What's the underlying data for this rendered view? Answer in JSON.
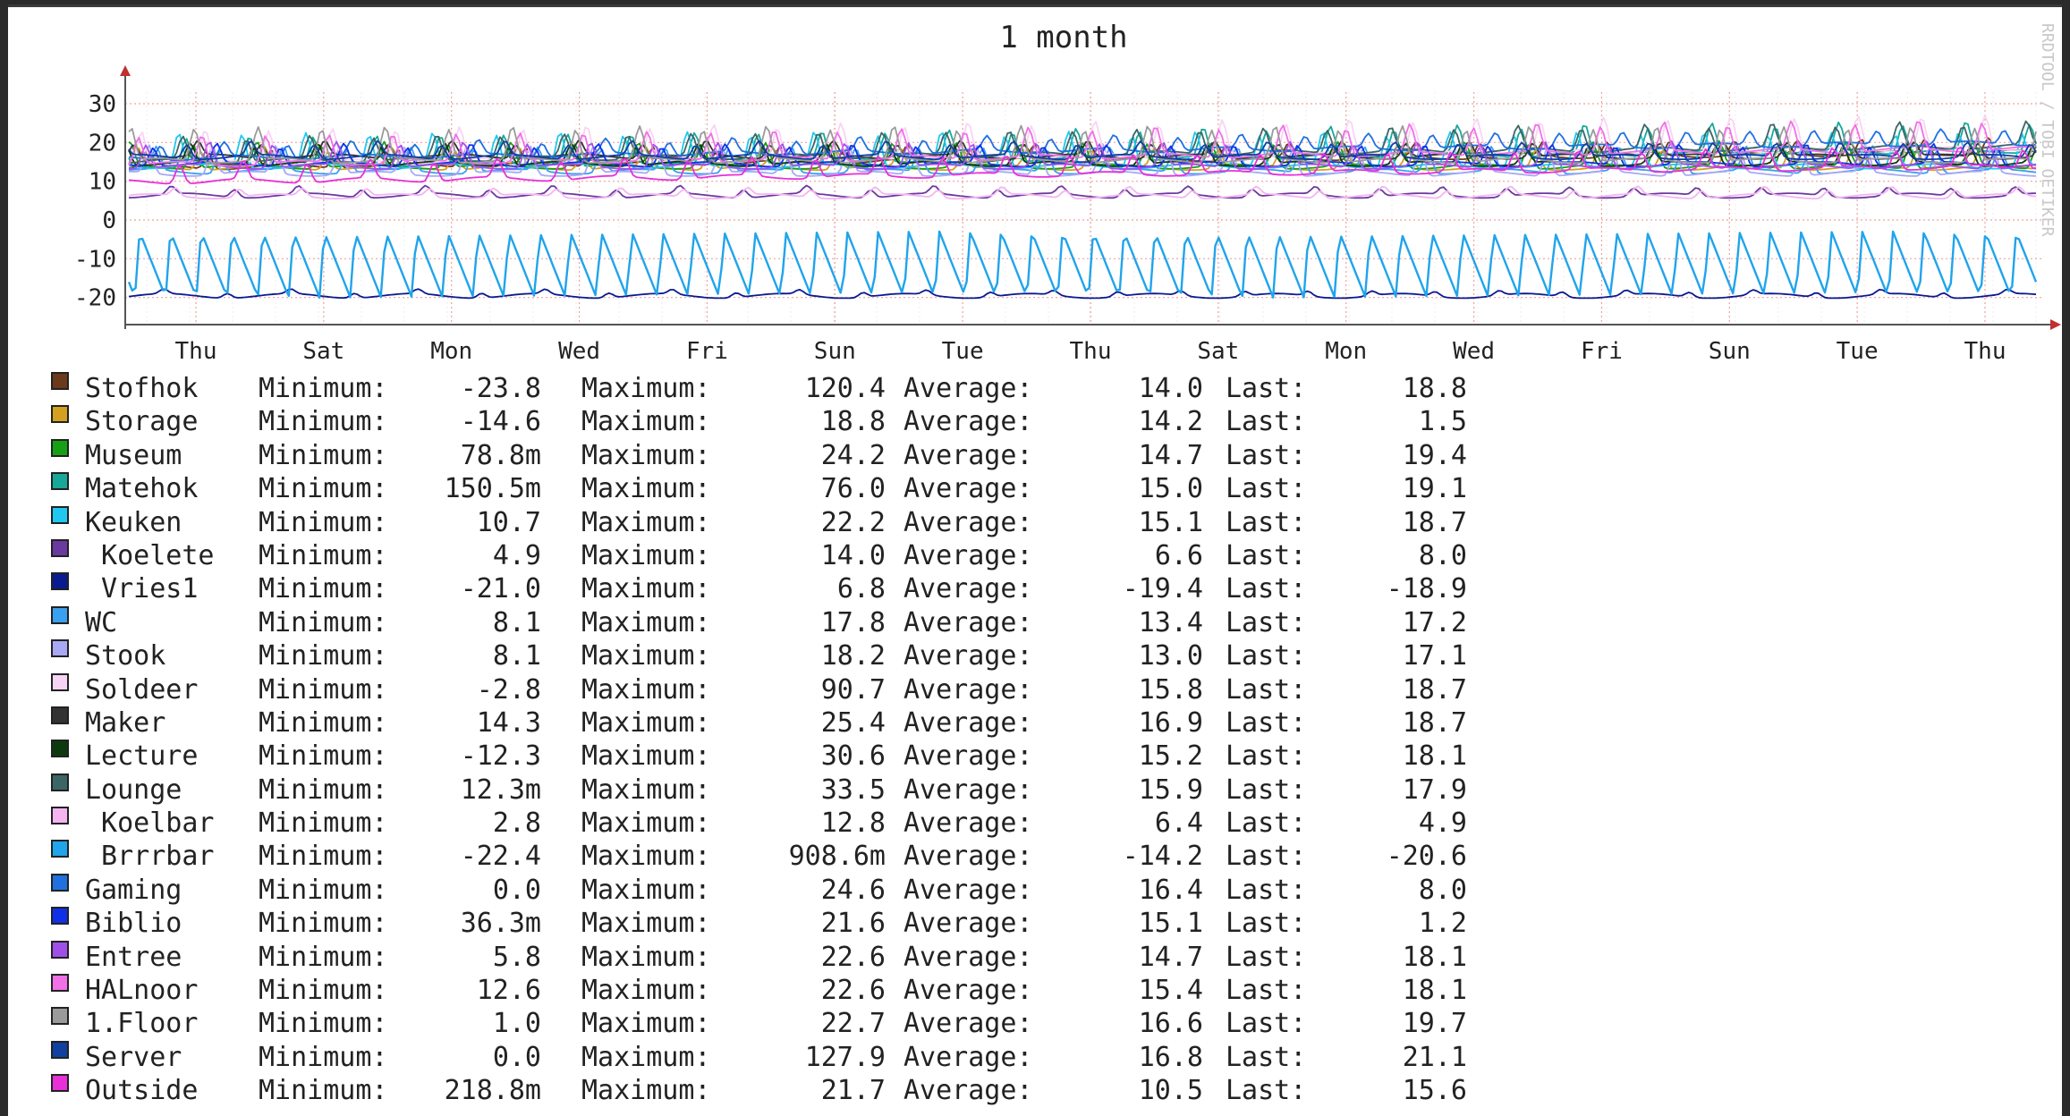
{
  "chart_data": {
    "type": "line",
    "title": "1 month",
    "watermark": "RRDTOOL / TOBI OETIKER",
    "x_ticks": [
      "Thu",
      "Sat",
      "Mon",
      "Wed",
      "Fri",
      "Sun",
      "Tue",
      "Thu",
      "Sat",
      "Mon",
      "Wed",
      "Fri",
      "Sun",
      "Tue",
      "Thu"
    ],
    "y_ticks": [
      30,
      20,
      10,
      0,
      -10,
      -20
    ],
    "ylim": [
      -27,
      33
    ],
    "grid": true,
    "legend_labels": {
      "min": "Minimum:",
      "max": "Maximum:",
      "avg": "Average:",
      "last": "Last:"
    },
    "series": [
      {
        "name": "Stofhok",
        "color": "#6b3a1a",
        "min": "-23.8",
        "max": "120.4",
        "avg": "14.0",
        "last": "18.8"
      },
      {
        "name": "Storage",
        "color": "#d4a020",
        "min": "-14.6",
        "max": "18.8",
        "avg": "14.2",
        "last": "1.5"
      },
      {
        "name": "Museum",
        "color": "#16a016",
        "min": "78.8m",
        "max": "24.2",
        "avg": "14.7",
        "last": "19.4"
      },
      {
        "name": "Matehok",
        "color": "#17a89a",
        "min": "150.5m",
        "max": "76.0",
        "avg": "15.0",
        "last": "19.1"
      },
      {
        "name": "Keuken",
        "color": "#20c8f0",
        "min": "10.7",
        "max": "22.2",
        "avg": "15.1",
        "last": "18.7"
      },
      {
        "name": " Koelete",
        "color": "#6a3aa0",
        "min": "4.9",
        "max": "14.0",
        "avg": "6.6",
        "last": "8.0"
      },
      {
        "name": " Vries1",
        "color": "#0a1a90",
        "min": "-21.0",
        "max": "6.8",
        "avg": "-19.4",
        "last": "-18.9"
      },
      {
        "name": "WC",
        "color": "#3aa0f0",
        "min": "8.1",
        "max": "17.8",
        "avg": "13.4",
        "last": "17.2"
      },
      {
        "name": "Stook",
        "color": "#a8a8f4",
        "min": "8.1",
        "max": "18.2",
        "avg": "13.0",
        "last": "17.1"
      },
      {
        "name": "Soldeer",
        "color": "#f8d4f4",
        "min": "-2.8",
        "max": "90.7",
        "avg": "15.8",
        "last": "18.7"
      },
      {
        "name": "Maker",
        "color": "#333333",
        "min": "14.3",
        "max": "25.4",
        "avg": "16.9",
        "last": "18.7"
      },
      {
        "name": "Lecture",
        "color": "#0d3a0d",
        "min": "-12.3",
        "max": "30.6",
        "avg": "15.2",
        "last": "18.1"
      },
      {
        "name": "Lounge",
        "color": "#3c6666",
        "min": "12.3m",
        "max": "33.5",
        "avg": "15.9",
        "last": "17.9"
      },
      {
        "name": " Koelbar",
        "color": "#f4b4f0",
        "min": "2.8",
        "max": "12.8",
        "avg": "6.4",
        "last": "4.9"
      },
      {
        "name": " Brrrbar",
        "color": "#20a4ec",
        "min": "-22.4",
        "max": "908.6m",
        "avg": "-14.2",
        "last": "-20.6"
      },
      {
        "name": "Gaming",
        "color": "#2070e0",
        "min": "0.0",
        "max": "24.6",
        "avg": "16.4",
        "last": "8.0"
      },
      {
        "name": "Biblio",
        "color": "#1030e8",
        "min": "36.3m",
        "max": "21.6",
        "avg": "15.1",
        "last": "1.2"
      },
      {
        "name": "Entree",
        "color": "#a050e8",
        "min": "5.8",
        "max": "22.6",
        "avg": "14.7",
        "last": "18.1"
      },
      {
        "name": "HALnoor",
        "color": "#f070e8",
        "min": "12.6",
        "max": "22.6",
        "avg": "15.4",
        "last": "18.1"
      },
      {
        "name": "1.Floor",
        "color": "#9a9a9a",
        "min": "1.0",
        "max": "22.7",
        "avg": "16.6",
        "last": "19.7"
      },
      {
        "name": "Server",
        "color": "#1040a0",
        "min": "0.0",
        "max": "127.9",
        "avg": "16.8",
        "last": "21.1"
      },
      {
        "name": "Outside",
        "color": "#e830d8",
        "min": "218.8m",
        "max": "21.7",
        "avg": "10.5",
        "last": "15.6"
      }
    ]
  }
}
